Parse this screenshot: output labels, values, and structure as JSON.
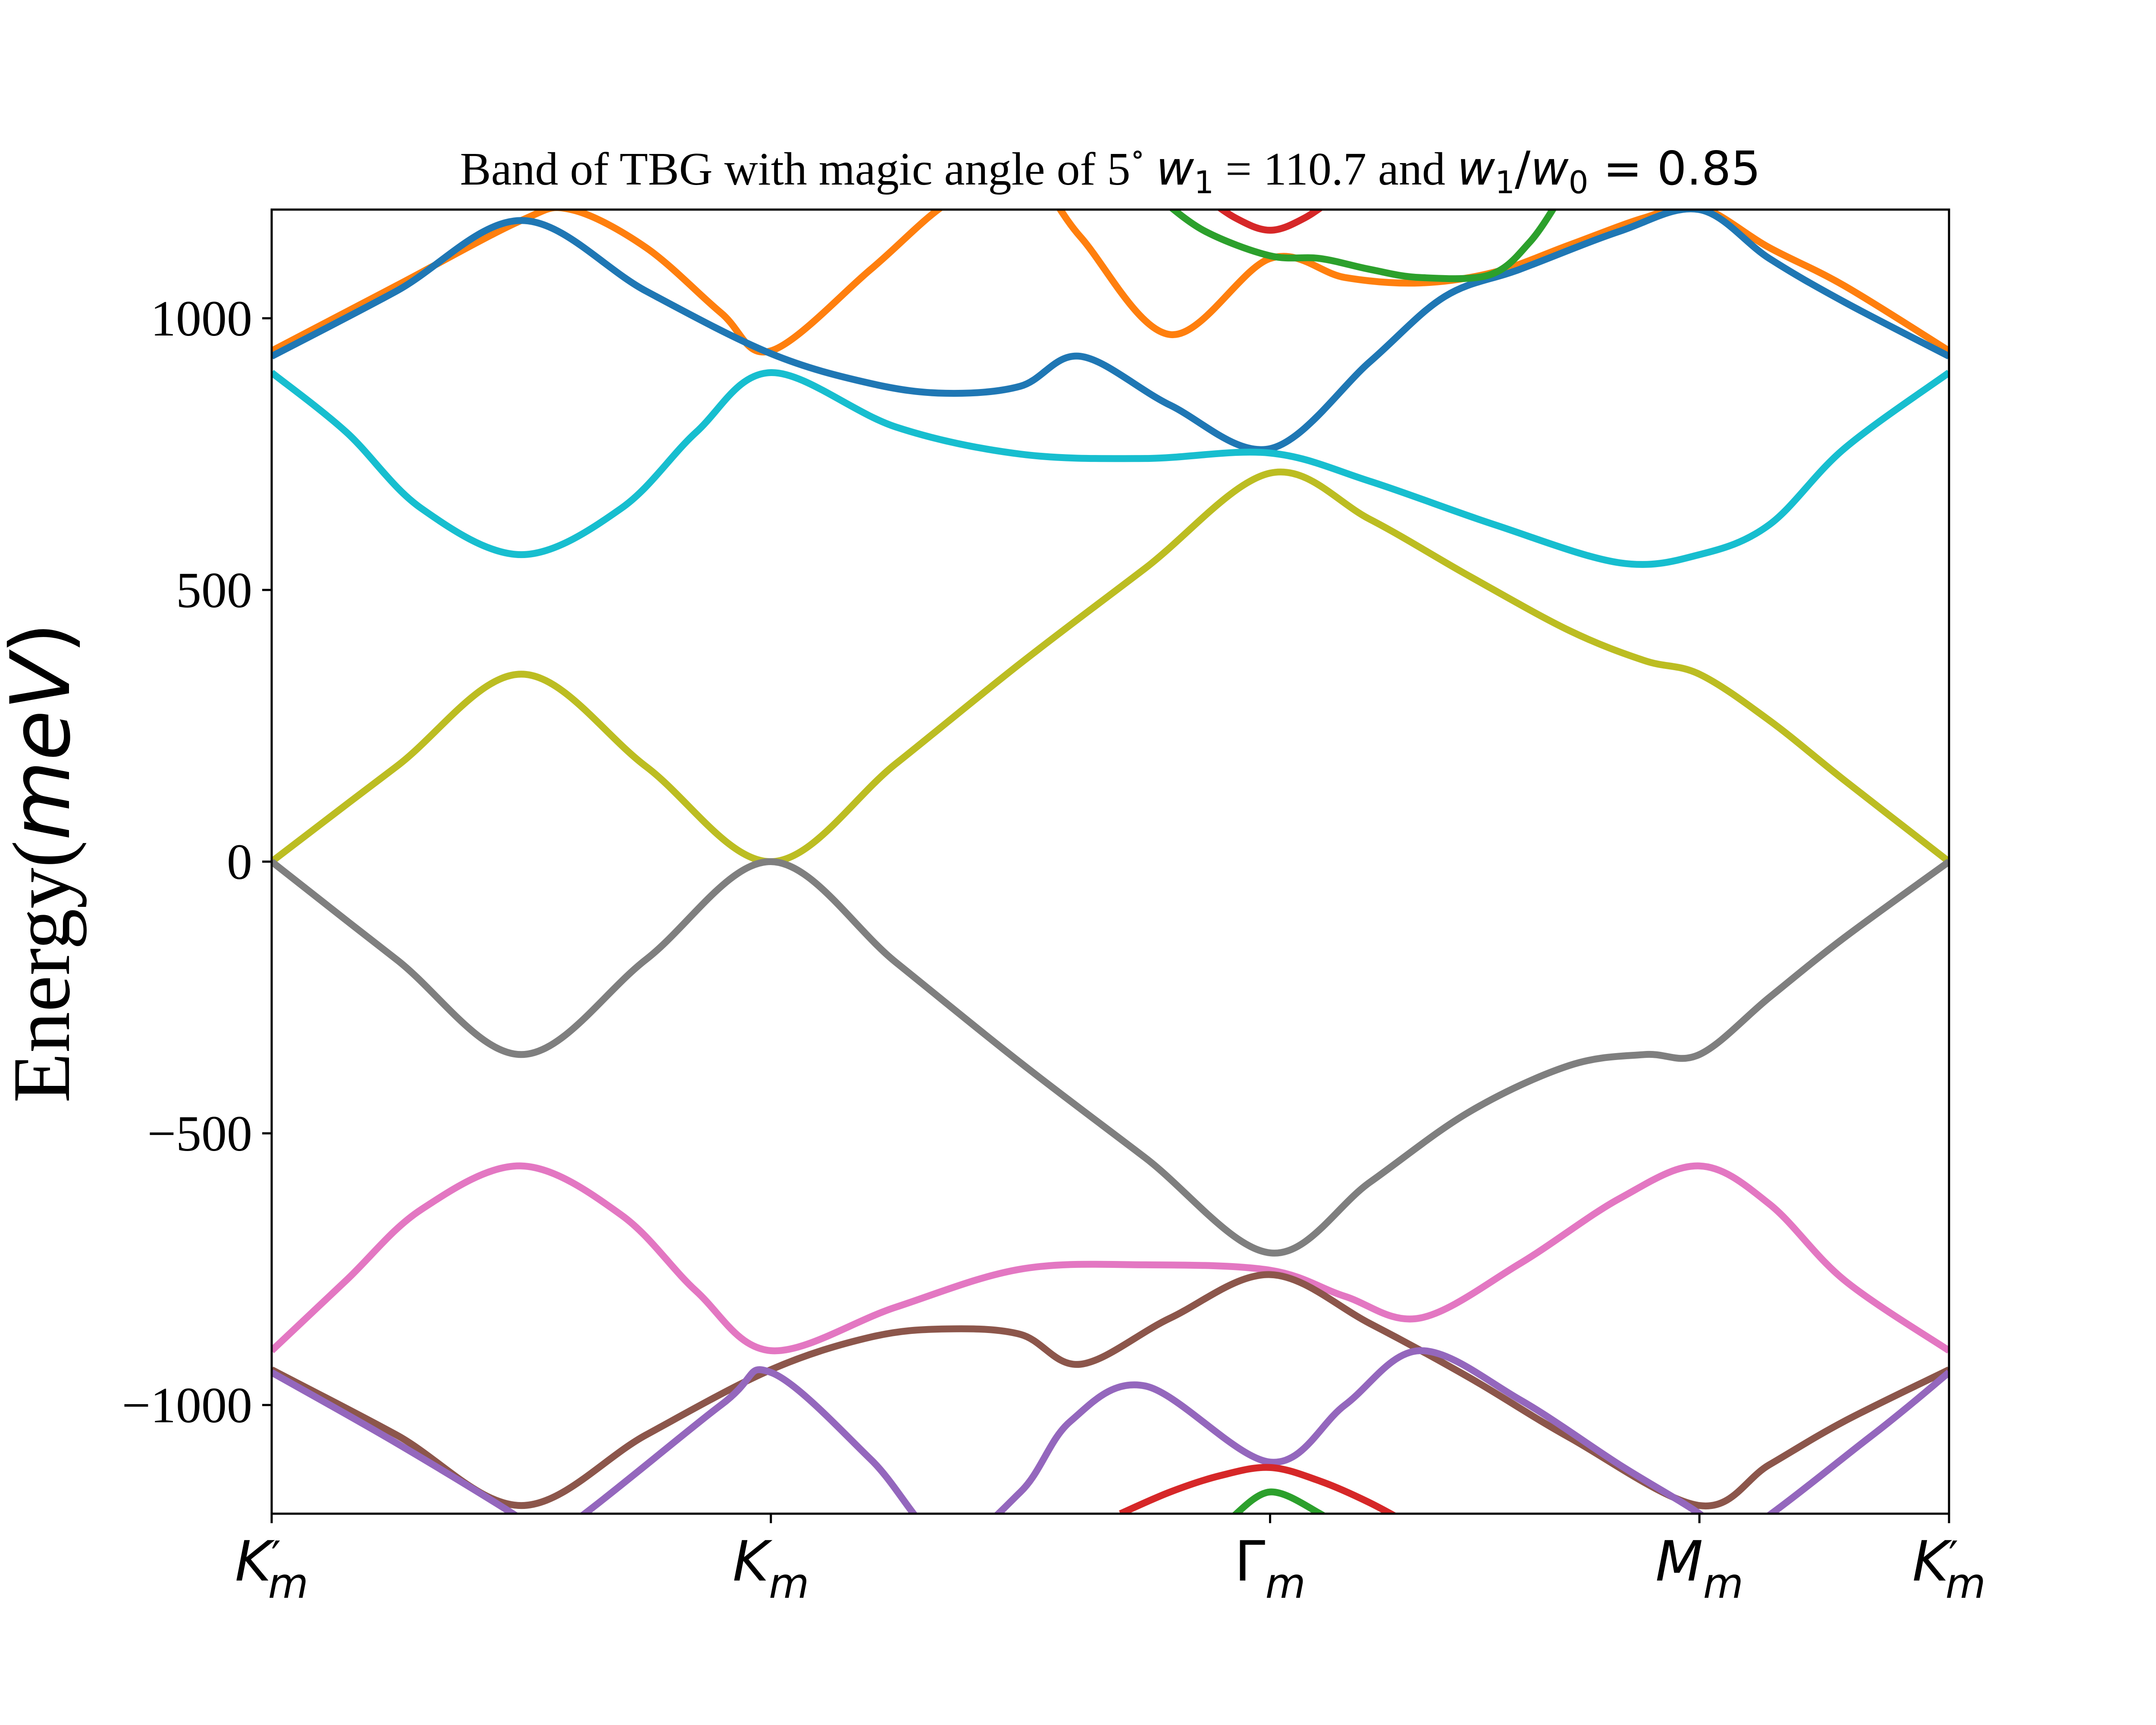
{
  "chart_data": {
    "type": "line",
    "title_parts": {
      "text1": "Band of TBG with magic angle of 5",
      "degree": "∘",
      "w": "w",
      "sub1": "1",
      "text2": " = 110.7 and ",
      "ratio_num_w": "w",
      "ratio_num_sub": "1",
      "slash": "/",
      "ratio_den_w": "w",
      "ratio_den_sub": "0",
      "text3": " = 0.85"
    },
    "ylabel_parts": {
      "text": "Energy(",
      "unit": "meV",
      "close": ")"
    },
    "ylim": [
      -1200,
      1200
    ],
    "yticks": [
      {
        "value": 1000,
        "label": "1000"
      },
      {
        "value": 500,
        "label": "500"
      },
      {
        "value": 0,
        "label": "0"
      },
      {
        "value": -500,
        "label": "−500"
      },
      {
        "value": -1000,
        "label": "−1000"
      }
    ],
    "xlim": [
      0,
      3.36
    ],
    "xticks": [
      {
        "value": 0,
        "main": "K",
        "prime": "′",
        "sub": "m"
      },
      {
        "value": 1.0,
        "main": "K",
        "prime": "",
        "sub": "m"
      },
      {
        "value": 2.0,
        "main": "Γ",
        "prime": "",
        "sub": "m"
      },
      {
        "value": 2.86,
        "main": "M",
        "prime": "",
        "sub": "m"
      },
      {
        "value": 3.36,
        "main": "K",
        "prime": "′",
        "sub": "m"
      }
    ],
    "grid": false,
    "series": [
      {
        "color": "#ff7f0e",
        "x": [
          0,
          0.25,
          0.5,
          0.6,
          0.75,
          0.9,
          1.0,
          1.2,
          1.35,
          1.5,
          1.62,
          1.8,
          2.0,
          2.15,
          2.3,
          2.45,
          2.6,
          2.75,
          2.86,
          3.0,
          3.15,
          3.36
        ],
        "y": [
          940,
          1060,
          1180,
          1200,
          1130,
          1010,
          940,
          1090,
          1210,
          1280,
          1150,
          970,
          1110,
          1075,
          1065,
          1085,
          1135,
          1185,
          1205,
          1130,
          1060,
          940
        ]
      },
      {
        "color": "#1f77b4",
        "x": [
          0,
          0.25,
          0.5,
          0.75,
          1.0,
          1.2,
          1.35,
          1.5,
          1.62,
          1.8,
          2.0,
          2.2,
          2.35,
          2.5,
          2.7,
          2.86,
          3.0,
          3.15,
          3.36
        ],
        "y": [
          930,
          1050,
          1180,
          1050,
          935,
          880,
          862,
          875,
          930,
          840,
          760,
          920,
          1040,
          1090,
          1160,
          1200,
          1110,
          1030,
          930
        ]
      },
      {
        "color": "#17becf",
        "x": [
          0,
          0.15,
          0.3,
          0.5,
          0.7,
          0.85,
          1.0,
          1.25,
          1.5,
          1.75,
          2.0,
          2.2,
          2.45,
          2.7,
          2.86,
          3.0,
          3.15,
          3.36
        ],
        "y": [
          900,
          790,
          650,
          565,
          650,
          790,
          900,
          800,
          750,
          742,
          752,
          700,
          620,
          550,
          565,
          620,
          760,
          900
        ]
      },
      {
        "color": "#bcbd22",
        "x": [
          0,
          0.25,
          0.5,
          0.75,
          1.0,
          1.25,
          1.5,
          1.75,
          2.0,
          2.2,
          2.4,
          2.6,
          2.75,
          2.86,
          3.0,
          3.15,
          3.36
        ],
        "y": [
          0,
          175,
          345,
          175,
          0,
          180,
          365,
          540,
          715,
          630,
          525,
          425,
          370,
          345,
          260,
          150,
          0
        ]
      },
      {
        "color": "#7f7f7f",
        "x": [
          0,
          0.25,
          0.5,
          0.75,
          1.0,
          1.25,
          1.5,
          1.75,
          2.0,
          2.2,
          2.4,
          2.6,
          2.75,
          2.86,
          3.0,
          3.15,
          3.36
        ],
        "y": [
          0,
          -180,
          -355,
          -180,
          0,
          -185,
          -370,
          -545,
          -720,
          -590,
          -460,
          -375,
          -355,
          -355,
          -250,
          -140,
          0
        ]
      },
      {
        "color": "#e377c2",
        "x": [
          0,
          0.15,
          0.3,
          0.5,
          0.7,
          0.85,
          1.0,
          1.25,
          1.5,
          1.75,
          2.0,
          2.15,
          2.3,
          2.5,
          2.7,
          2.86,
          3.0,
          3.15,
          3.36
        ],
        "y": [
          -900,
          -770,
          -640,
          -560,
          -650,
          -790,
          -900,
          -820,
          -750,
          -742,
          -752,
          -800,
          -840,
          -740,
          -620,
          -560,
          -630,
          -770,
          -900
        ]
      },
      {
        "color": "#8c564b",
        "x": [
          0,
          0.25,
          0.5,
          0.75,
          1.0,
          1.2,
          1.35,
          1.5,
          1.62,
          1.8,
          2.0,
          2.2,
          2.4,
          2.6,
          2.86,
          3.0,
          3.15,
          3.36
        ],
        "y": [
          -935,
          -1055,
          -1185,
          -1055,
          -935,
          -875,
          -860,
          -870,
          -925,
          -840,
          -760,
          -850,
          -950,
          -1060,
          -1185,
          -1110,
          -1030,
          -935
        ]
      },
      {
        "color": "#9467bd",
        "x": [
          0,
          0.25,
          0.5,
          0.55,
          0.9,
          1.0,
          1.2,
          1.35,
          1.5,
          1.6,
          1.75,
          2.0,
          2.15,
          2.3,
          2.5,
          2.7,
          2.86,
          2.92,
          3.2,
          3.36
        ],
        "y": [
          -940,
          -1070,
          -1210,
          -1250,
          -1000,
          -940,
          -1100,
          -1250,
          -1160,
          -1030,
          -965,
          -1105,
          -1000,
          -900,
          -990,
          -1110,
          -1200,
          -1250,
          -1060,
          -940
        ]
      },
      {
        "color": "#d62728",
        "x": [
          1.7,
          1.8,
          1.9,
          2.0,
          2.1,
          2.2,
          2.3
        ],
        "y": [
          -1200,
          -1160,
          -1130,
          -1115,
          -1140,
          -1180,
          -1230
        ]
      },
      {
        "color": "#d62728",
        "x": [
          1.86,
          1.93,
          2.0,
          2.07,
          2.14
        ],
        "y": [
          1230,
          1185,
          1162,
          1185,
          1230
        ]
      },
      {
        "color": "#2ca02c",
        "x": [
          1.78,
          1.87,
          2.0,
          2.1,
          2.2,
          2.3,
          2.44,
          2.52,
          2.58
        ],
        "y": [
          1220,
          1160,
          1115,
          1110,
          1090,
          1075,
          1080,
          1140,
          1220
        ]
      },
      {
        "color": "#2ca02c",
        "x": [
          1.92,
          2.0,
          2.1,
          2.16
        ],
        "y": [
          -1210,
          -1160,
          -1200,
          -1240
        ]
      }
    ]
  }
}
